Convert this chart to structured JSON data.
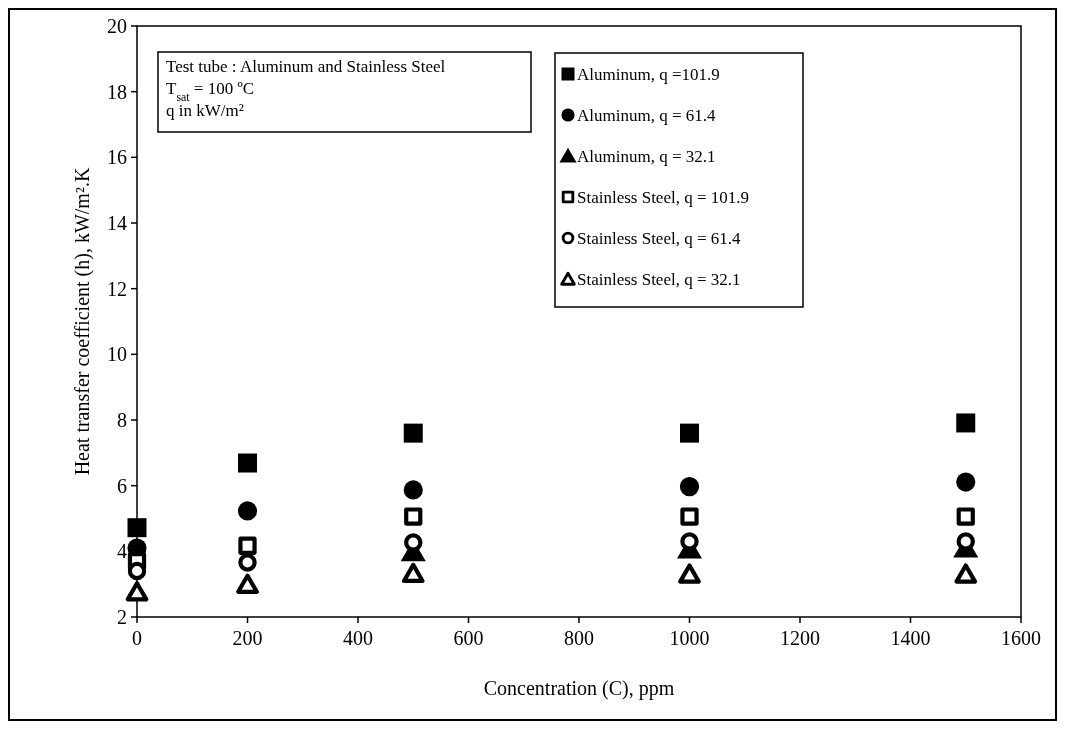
{
  "chart_data": {
    "type": "scatter",
    "xlabel": "Concentration  (C), ppm",
    "ylabel": "Heat transfer coefficient (h), kW/m².K",
    "x": [
      0,
      200,
      500,
      1000,
      1500
    ],
    "xlim": [
      0,
      1600
    ],
    "xticks": [
      0,
      200,
      400,
      600,
      800,
      1000,
      1200,
      1400,
      1600
    ],
    "ylim": [
      2,
      20
    ],
    "yticks": [
      2,
      4,
      6,
      8,
      10,
      12,
      14,
      16,
      18,
      20
    ],
    "grid": false,
    "legend": "top right",
    "annotations": [
      "Test tube : Aluminum and Stainless Steel",
      "T$_{sat}$  = 100 ºC",
      "q in kW/m²"
    ],
    "series": [
      {
        "name": "Aluminum, q =101.9",
        "color": "#000000",
        "marker": "square",
        "values": [
          4.72,
          6.69,
          7.6,
          7.6,
          7.91
        ]
      },
      {
        "name": "Aluminum, q = 61.4",
        "color": "#000000",
        "marker": "circle",
        "values": [
          4.1,
          5.23,
          5.87,
          5.97,
          6.11
        ]
      },
      {
        "name": "Aluminum, q = 32.1",
        "color": "#000000",
        "marker": "triangle",
        "values": [
          null,
          null,
          3.99,
          4.07,
          4.1
        ]
      },
      {
        "name": "Stainless Steel, q = 101.9",
        "color": "#000000",
        "marker": "square",
        "values": [
          3.7,
          4.17,
          5.06,
          5.06,
          5.06
        ]
      },
      {
        "name": "Stainless Steel, q = 61.4",
        "color": "#000000",
        "marker": "circle",
        "values": [
          3.4,
          3.66,
          4.27,
          4.3,
          4.3
        ]
      },
      {
        "name": "Stainless Steel, q = 32.1",
        "color": "#000000",
        "marker": "triangle",
        "values": [
          2.77,
          3.0,
          3.33,
          3.31,
          3.31
        ]
      }
    ]
  }
}
